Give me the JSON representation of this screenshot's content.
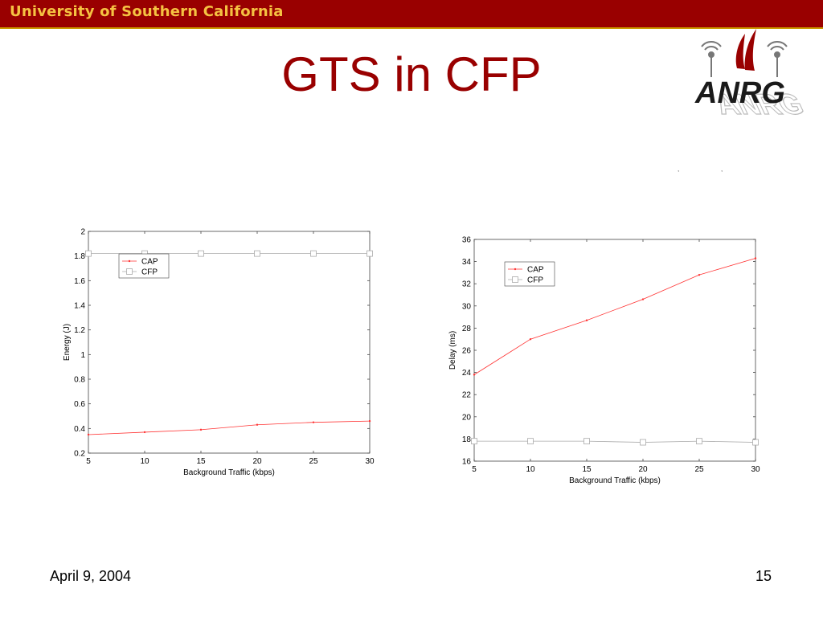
{
  "header": {
    "university": "University of Southern California"
  },
  "slide": {
    "title": "GTS in CFP",
    "date": "April 9, 2004",
    "page_number": "15"
  },
  "logo": {
    "text": "ANRG"
  },
  "colors": {
    "cap": "#ff3333",
    "cfp": "#aaaaaa",
    "title": "#990000",
    "bar": "#990000",
    "bar_text": "#f5c242"
  },
  "chart_data": [
    {
      "type": "line",
      "xlabel": "Background Traffic (kbps)",
      "ylabel": "Energy (J)",
      "x": [
        5,
        10,
        15,
        20,
        25,
        30
      ],
      "xlim": [
        5,
        30
      ],
      "ylim": [
        0.2,
        2
      ],
      "xticks": [
        "5",
        "10",
        "15",
        "20",
        "25",
        "30"
      ],
      "yticks": [
        "0.2",
        "0.4",
        "0.6",
        "0.8",
        "1",
        "1.2",
        "1.4",
        "1.6",
        "1.8",
        "2"
      ],
      "series": [
        {
          "name": "CAP",
          "values": [
            0.35,
            0.37,
            0.39,
            0.43,
            0.45,
            0.46
          ]
        },
        {
          "name": "CFP",
          "values": [
            1.82,
            1.82,
            1.82,
            1.82,
            1.82,
            1.82
          ]
        }
      ],
      "legend": "upper-left",
      "grid": false
    },
    {
      "type": "line",
      "xlabel": "Background Traffic (kbps)",
      "ylabel": "Delay (ms)",
      "x": [
        5,
        10,
        15,
        20,
        25,
        30
      ],
      "xlim": [
        5,
        30
      ],
      "ylim": [
        16,
        36
      ],
      "xticks": [
        "5",
        "10",
        "15",
        "20",
        "25",
        "30"
      ],
      "yticks": [
        "16",
        "18",
        "20",
        "22",
        "24",
        "26",
        "28",
        "30",
        "32",
        "34",
        "36"
      ],
      "series": [
        {
          "name": "CAP",
          "values": [
            23.8,
            27.0,
            28.7,
            30.6,
            32.8,
            34.3
          ]
        },
        {
          "name": "CFP",
          "values": [
            17.8,
            17.8,
            17.8,
            17.7,
            17.8,
            17.7
          ]
        }
      ],
      "legend": "upper-left",
      "grid": false
    }
  ]
}
